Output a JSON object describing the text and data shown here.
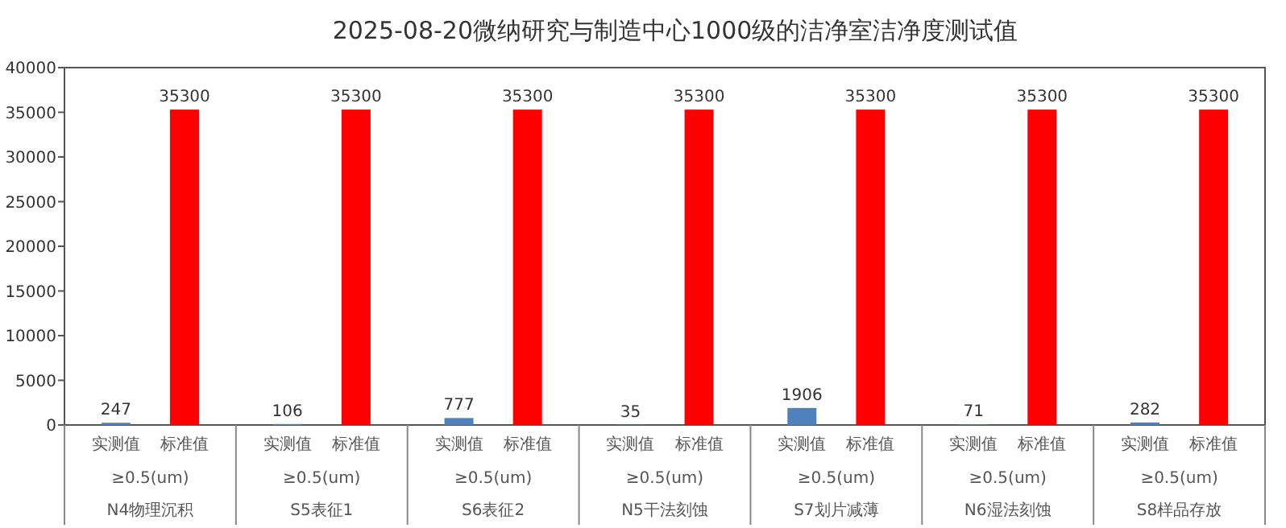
{
  "chart_data": {
    "type": "bar",
    "title": "2025-08-20微纳研究与制造中心1000级的洁净室洁净度测试值",
    "categories": [
      "N4物理沉积",
      "S5表征1",
      "S6表征2",
      "N5干法刻蚀",
      "S7划片减薄",
      "N6湿法刻蚀",
      "S8样品存放"
    ],
    "series": [
      {
        "name": "实测值",
        "color": "#4f81bd",
        "values": [
          247,
          106,
          777,
          35,
          1906,
          71,
          282
        ]
      },
      {
        "name": "标准值",
        "color": "#ff0000",
        "values": [
          35300,
          35300,
          35300,
          35300,
          35300,
          35300,
          35300
        ]
      }
    ],
    "annotations": [
      "≥0.5(um)",
      "≥0.5(um)",
      "≥0.5(um)",
      "≥0.5(um)",
      "≥0.5(um)",
      "≥0.5(um)",
      "≥0.5(um)"
    ],
    "ylim": [
      0,
      40000
    ],
    "yticks": [
      0,
      5000,
      10000,
      15000,
      20000,
      25000,
      30000,
      35000,
      40000
    ],
    "data_labels": true,
    "grid": false
  }
}
